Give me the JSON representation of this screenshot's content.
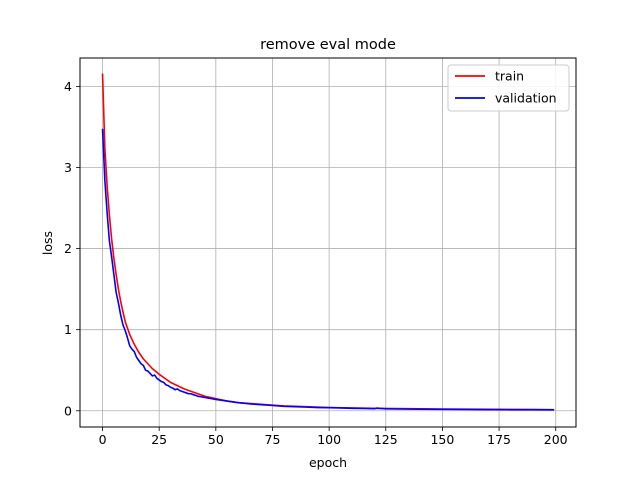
{
  "chart_data": {
    "type": "line",
    "title": "remove eval mode",
    "xlabel": "epoch",
    "ylabel": "loss",
    "xlim": [
      -9.95,
      208.95
    ],
    "ylim": [
      -0.2,
      4.35
    ],
    "xticks": [
      0,
      25,
      50,
      75,
      100,
      125,
      150,
      175,
      200
    ],
    "yticks": [
      0,
      1,
      2,
      3,
      4
    ],
    "grid": true,
    "legend_position": "upper right",
    "series": [
      {
        "name": "train",
        "color": "#ff0000",
        "x": [
          0,
          1,
          2,
          3,
          4,
          5,
          6,
          7,
          8,
          9,
          10,
          12,
          14,
          16,
          18,
          20,
          22,
          25,
          28,
          30,
          33,
          36,
          40,
          45,
          50,
          55,
          60,
          70,
          80,
          90,
          100,
          110,
          120,
          130,
          140,
          150,
          160,
          170,
          180,
          190,
          199
        ],
        "y": [
          4.15,
          3.25,
          2.78,
          2.42,
          2.12,
          1.88,
          1.68,
          1.5,
          1.35,
          1.22,
          1.1,
          0.94,
          0.82,
          0.72,
          0.64,
          0.58,
          0.52,
          0.45,
          0.39,
          0.35,
          0.31,
          0.27,
          0.23,
          0.18,
          0.15,
          0.12,
          0.1,
          0.08,
          0.06,
          0.05,
          0.04,
          0.035,
          0.03,
          0.027,
          0.024,
          0.022,
          0.02,
          0.018,
          0.016,
          0.015,
          0.014
        ]
      },
      {
        "name": "validation",
        "color": "#0000ff",
        "x": [
          0,
          1,
          2,
          3,
          4,
          5,
          6,
          7,
          8,
          9,
          10,
          11,
          12,
          13,
          14,
          15,
          16,
          17,
          18,
          19,
          20,
          21,
          22,
          23,
          24,
          25,
          26,
          27,
          28,
          29,
          30,
          31,
          32,
          33,
          34,
          35,
          36,
          37,
          38,
          39,
          40,
          42,
          44,
          46,
          48,
          50,
          55,
          60,
          65,
          70,
          75,
          80,
          85,
          90,
          95,
          100,
          105,
          110,
          115,
          120,
          121,
          125,
          130,
          140,
          150,
          160,
          170,
          180,
          190,
          199
        ],
        "y": [
          3.47,
          2.85,
          2.45,
          2.1,
          1.9,
          1.68,
          1.46,
          1.33,
          1.18,
          1.06,
          0.99,
          0.9,
          0.8,
          0.76,
          0.73,
          0.66,
          0.62,
          0.58,
          0.56,
          0.5,
          0.49,
          0.46,
          0.43,
          0.44,
          0.4,
          0.38,
          0.36,
          0.35,
          0.32,
          0.31,
          0.29,
          0.28,
          0.26,
          0.27,
          0.25,
          0.24,
          0.23,
          0.22,
          0.21,
          0.21,
          0.2,
          0.18,
          0.17,
          0.16,
          0.15,
          0.14,
          0.12,
          0.1,
          0.085,
          0.075,
          0.065,
          0.055,
          0.05,
          0.045,
          0.04,
          0.038,
          0.035,
          0.03,
          0.028,
          0.025,
          0.033,
          0.024,
          0.022,
          0.02,
          0.018,
          0.016,
          0.015,
          0.014,
          0.013,
          0.012
        ]
      }
    ]
  }
}
